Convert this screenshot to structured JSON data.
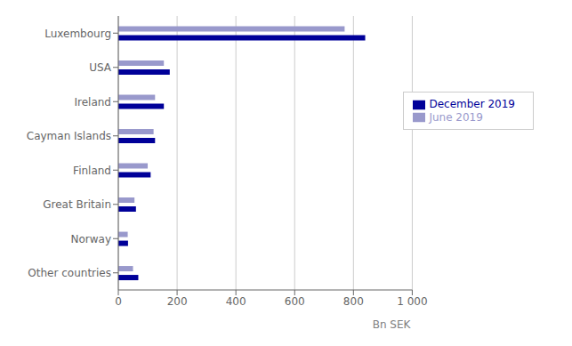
{
  "chart_data": {
    "type": "bar",
    "orientation": "horizontal",
    "categories": [
      "Luxembourg",
      "USA",
      "Ireland",
      "Cayman Islands",
      "Finland",
      "Great Britain",
      "Norway",
      "Other countries"
    ],
    "series": [
      {
        "name": "June 2019",
        "color": "#9999cc",
        "values": [
          770,
          155,
          125,
          120,
          100,
          55,
          32,
          50
        ]
      },
      {
        "name": "December 2019",
        "color": "#000099",
        "values": [
          840,
          175,
          155,
          125,
          110,
          60,
          33,
          68
        ]
      }
    ],
    "xlabel": "Bn SEK",
    "xlim": [
      0,
      1000
    ],
    "xticks": [
      0,
      200,
      400,
      600,
      800,
      {
        "value": 1000,
        "label": "1 000"
      }
    ],
    "grid": true,
    "legend": "upper right"
  }
}
